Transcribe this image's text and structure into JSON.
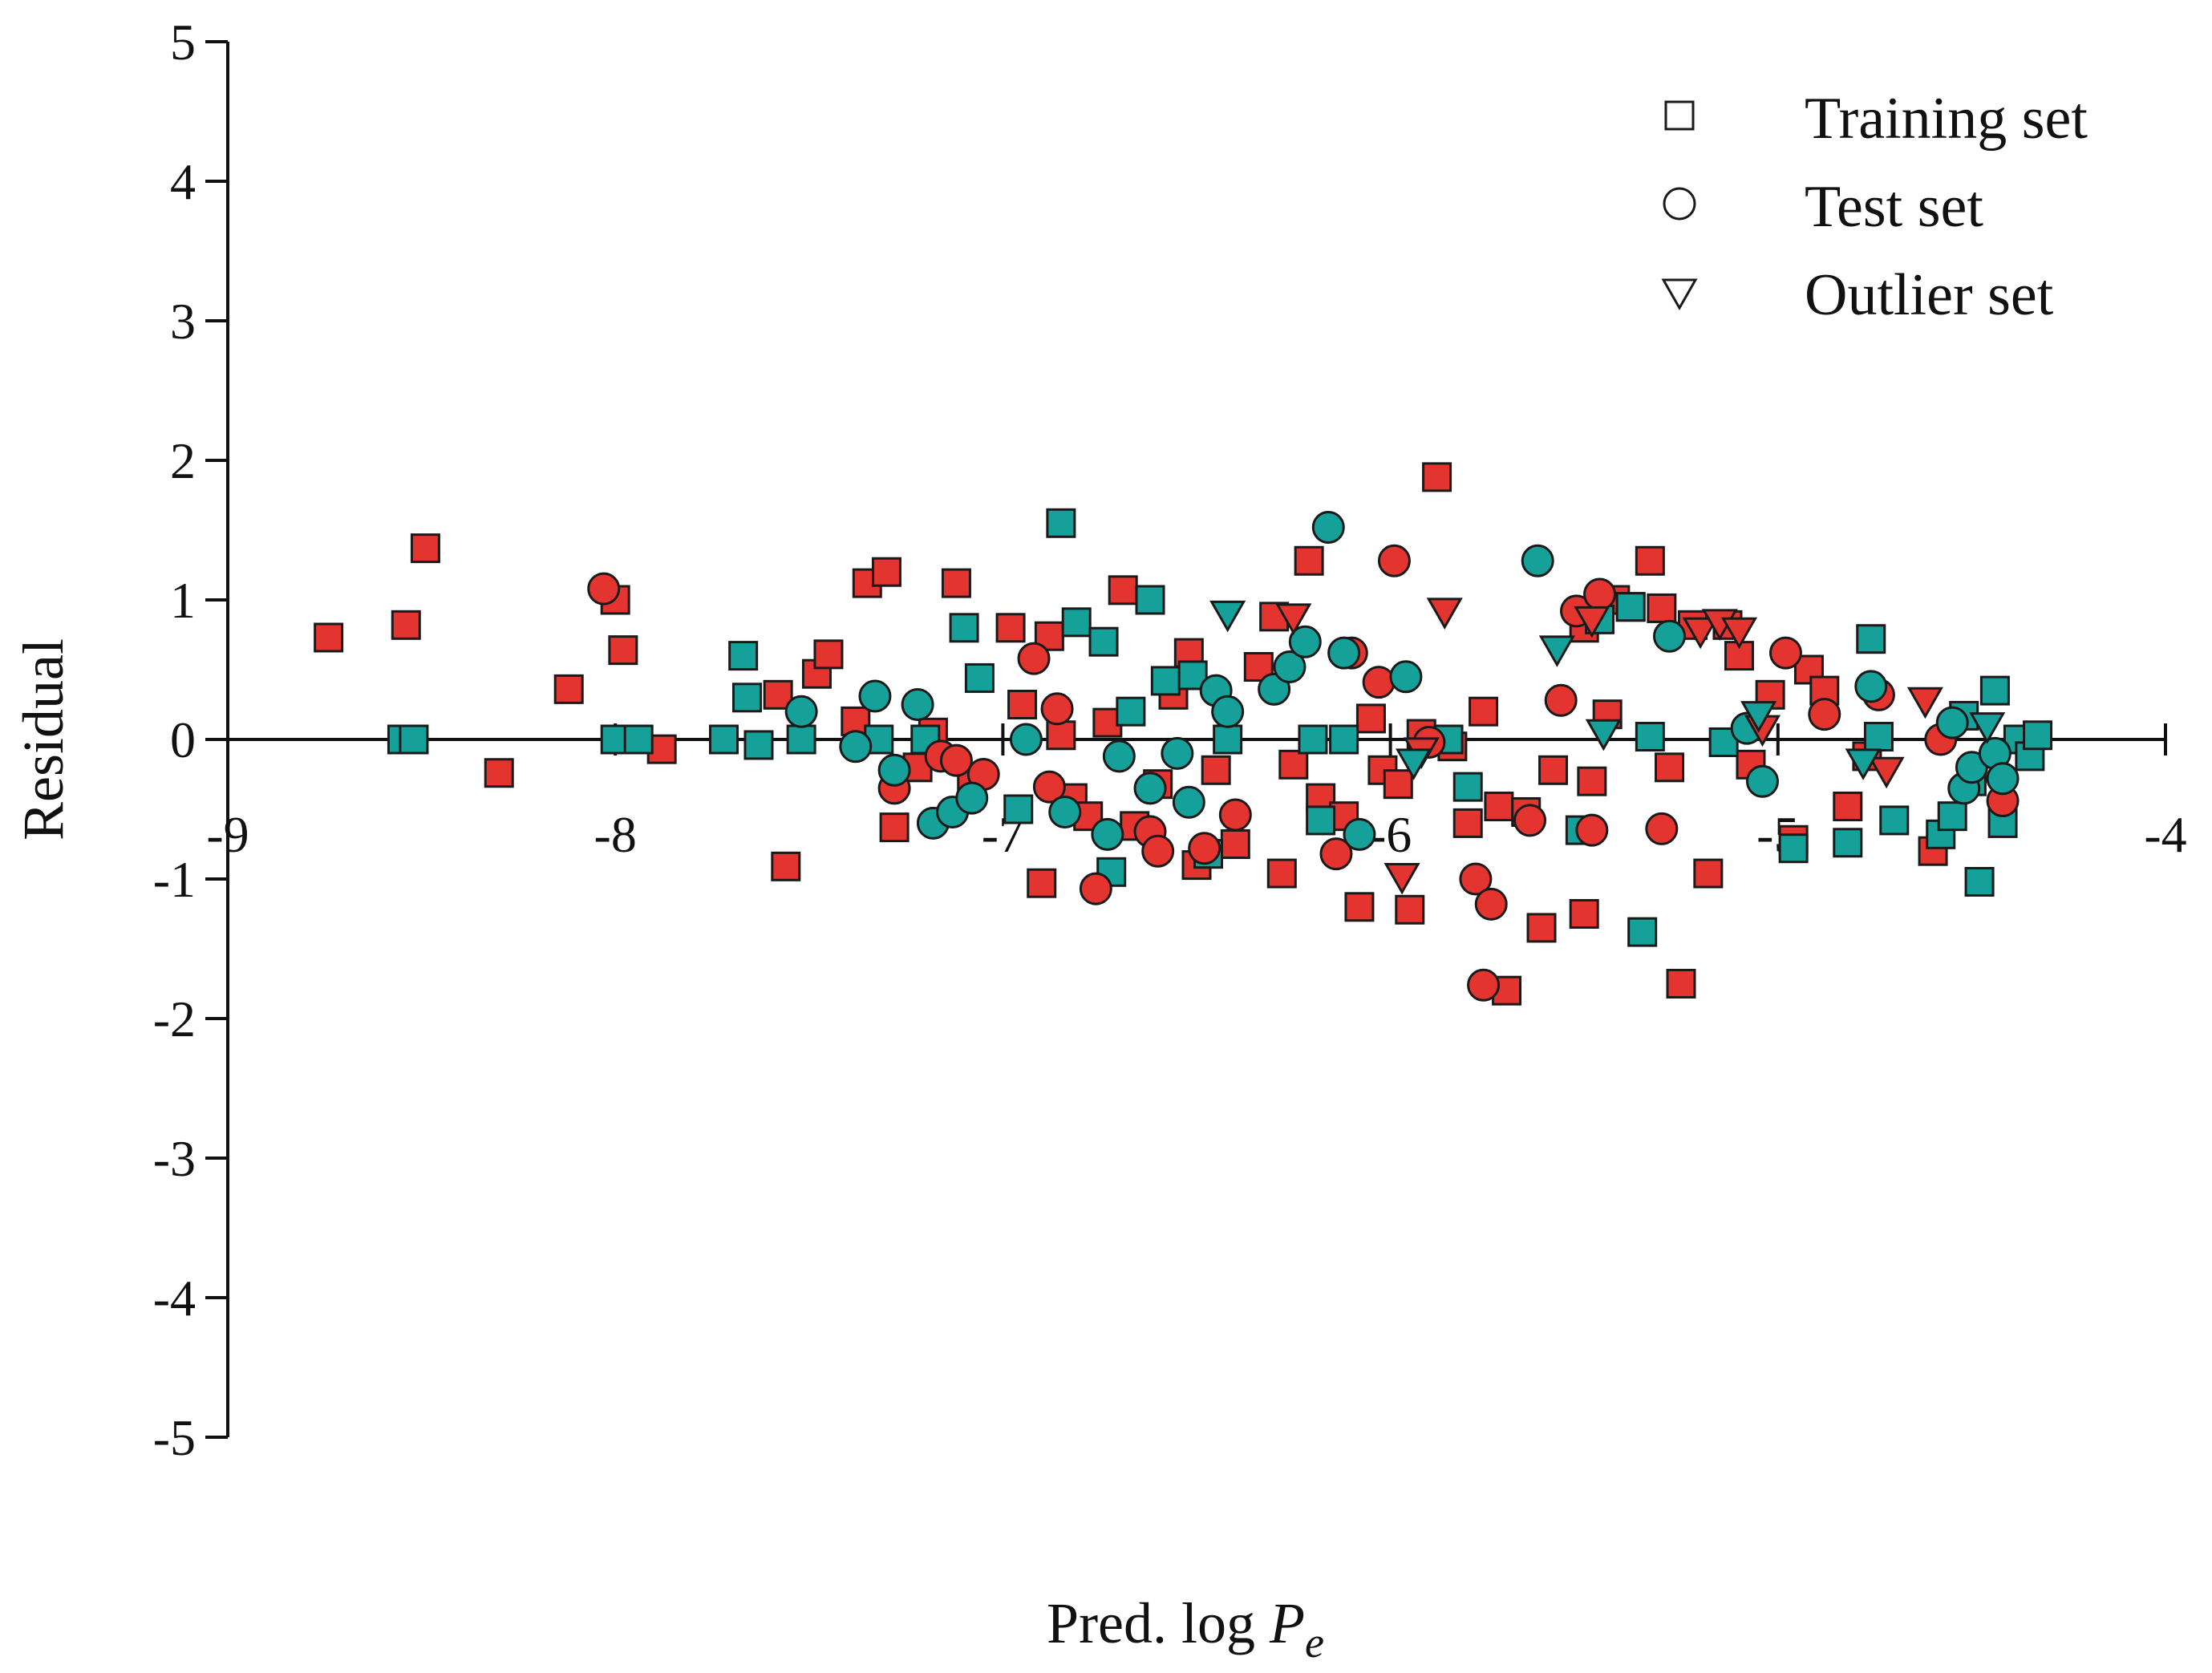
{
  "chart_data": {
    "type": "scatter",
    "xlabel_prefix": "Pred. log ",
    "xlabel_var": "P",
    "xlabel_sub": "e",
    "ylabel": "Residual",
    "xlim": [
      -9,
      -4
    ],
    "ylim": [
      -5,
      5
    ],
    "xticks": [
      "-9",
      "-8",
      "-7",
      "-6",
      "-5",
      "-4"
    ],
    "yticks": [
      "5",
      "4",
      "3",
      "2",
      "1",
      "0",
      "-1",
      "-2",
      "-3",
      "-4",
      "-5"
    ],
    "legend": {
      "position": "top-right",
      "entries": [
        {
          "label": "Training set",
          "marker": "square"
        },
        {
          "label": "Test set",
          "marker": "circle"
        },
        {
          "label": "Outlier set",
          "marker": "triangle-down"
        }
      ]
    },
    "colors": {
      "red": "#e3342f",
      "teal": "#15a09a",
      "edge": "#1a1a1a"
    },
    "series": [
      {
        "marker": "square",
        "color": "red",
        "points": [
          [
            -8.74,
            0.73
          ],
          [
            -8.54,
            0.82
          ],
          [
            -8.49,
            1.37
          ],
          [
            -8.3,
            -0.24
          ],
          [
            -8.12,
            0.36
          ],
          [
            -8.0,
            1.0
          ],
          [
            -7.98,
            0.64
          ],
          [
            -7.88,
            -0.07
          ],
          [
            -7.58,
            0.32
          ],
          [
            -7.56,
            -0.91
          ],
          [
            -7.48,
            0.47
          ],
          [
            -7.45,
            0.61
          ],
          [
            -7.38,
            0.13
          ],
          [
            -7.35,
            1.12
          ],
          [
            -7.3,
            1.2
          ],
          [
            -7.28,
            -0.63
          ],
          [
            -7.22,
            -0.2
          ],
          [
            -7.18,
            0.05
          ],
          [
            -7.12,
            1.12
          ],
          [
            -7.08,
            -0.3
          ],
          [
            -6.98,
            0.8
          ],
          [
            -6.95,
            0.25
          ],
          [
            -6.9,
            -1.03
          ],
          [
            -6.88,
            0.74
          ],
          [
            -6.85,
            0.03
          ],
          [
            -6.82,
            -0.42
          ],
          [
            -6.78,
            -0.55
          ],
          [
            -6.73,
            0.12
          ],
          [
            -6.69,
            1.07
          ],
          [
            -6.66,
            -0.62
          ],
          [
            -6.6,
            -0.32
          ],
          [
            -6.56,
            0.32
          ],
          [
            -6.52,
            0.62
          ],
          [
            -6.5,
            -0.9
          ],
          [
            -6.45,
            -0.22
          ],
          [
            -6.4,
            -0.75
          ],
          [
            -6.34,
            0.52
          ],
          [
            -6.3,
            0.88
          ],
          [
            -6.28,
            -0.96
          ],
          [
            -6.25,
            -0.18
          ],
          [
            -6.21,
            1.28
          ],
          [
            -6.18,
            -0.42
          ],
          [
            -6.12,
            -0.55
          ],
          [
            -6.08,
            -1.2
          ],
          [
            -6.05,
            0.15
          ],
          [
            -6.02,
            -0.22
          ],
          [
            -5.98,
            -0.32
          ],
          [
            -5.95,
            -1.22
          ],
          [
            -5.92,
            0.04
          ],
          [
            -5.88,
            1.88
          ],
          [
            -5.84,
            -0.05
          ],
          [
            -5.8,
            -0.6
          ],
          [
            -5.76,
            0.2
          ],
          [
            -5.72,
            -0.48
          ],
          [
            -5.7,
            -1.8
          ],
          [
            -5.65,
            -0.52
          ],
          [
            -5.61,
            -1.35
          ],
          [
            -5.58,
            -0.22
          ],
          [
            -5.5,
            0.8
          ],
          [
            -5.5,
            -1.25
          ],
          [
            -5.48,
            -0.3
          ],
          [
            -5.44,
            0.18
          ],
          [
            -5.42,
            1.0
          ],
          [
            -5.38,
            0.95
          ],
          [
            -5.33,
            1.28
          ],
          [
            -5.3,
            0.94
          ],
          [
            -5.28,
            -0.2
          ],
          [
            -5.25,
            -1.75
          ],
          [
            -5.22,
            0.82
          ],
          [
            -5.18,
            -0.96
          ],
          [
            -5.13,
            0.82
          ],
          [
            -5.1,
            0.6
          ],
          [
            -5.07,
            -0.18
          ],
          [
            -5.02,
            0.32
          ],
          [
            -4.96,
            -0.72
          ],
          [
            -4.92,
            0.5
          ],
          [
            -4.88,
            0.35
          ],
          [
            -4.82,
            -0.48
          ],
          [
            -4.77,
            -0.12
          ],
          [
            -4.6,
            -0.8
          ]
        ]
      },
      {
        "marker": "square",
        "color": "teal",
        "points": [
          [
            -8.55,
            0.0
          ],
          [
            -8.52,
            0.0
          ],
          [
            -8.0,
            0.0
          ],
          [
            -7.94,
            0.0
          ],
          [
            -7.72,
            0.0
          ],
          [
            -7.67,
            0.6
          ],
          [
            -7.66,
            0.3
          ],
          [
            -7.63,
            -0.04
          ],
          [
            -7.52,
            0.0
          ],
          [
            -7.32,
            0.0
          ],
          [
            -7.2,
            0.0
          ],
          [
            -7.1,
            0.8
          ],
          [
            -7.06,
            0.44
          ],
          [
            -6.96,
            -0.5
          ],
          [
            -6.85,
            1.55
          ],
          [
            -6.81,
            0.84
          ],
          [
            -6.74,
            0.7
          ],
          [
            -6.72,
            -0.95
          ],
          [
            -6.67,
            0.2
          ],
          [
            -6.62,
            1.0
          ],
          [
            -6.58,
            0.42
          ],
          [
            -6.51,
            0.46
          ],
          [
            -6.47,
            -0.82
          ],
          [
            -6.42,
            0.0
          ],
          [
            -6.2,
            0.0
          ],
          [
            -6.18,
            -0.58
          ],
          [
            -6.12,
            0.0
          ],
          [
            -5.85,
            0.0
          ],
          [
            -5.8,
            -0.34
          ],
          [
            -5.51,
            -0.65
          ],
          [
            -5.46,
            0.86
          ],
          [
            -5.38,
            0.95
          ],
          [
            -5.35,
            -1.38
          ],
          [
            -5.33,
            0.02
          ],
          [
            -5.14,
            -0.02
          ],
          [
            -4.96,
            -0.78
          ],
          [
            -4.82,
            -0.74
          ],
          [
            -4.76,
            0.72
          ],
          [
            -4.74,
            0.02
          ],
          [
            -4.7,
            -0.58
          ],
          [
            -4.58,
            -0.68
          ],
          [
            -4.55,
            -0.55
          ],
          [
            -4.52,
            0.17
          ],
          [
            -4.5,
            -0.3
          ],
          [
            -4.48,
            -1.02
          ],
          [
            -4.44,
            0.35
          ],
          [
            -4.42,
            -0.6
          ],
          [
            -4.38,
            0.0
          ],
          [
            -4.35,
            -0.12
          ],
          [
            -4.33,
            0.03
          ]
        ]
      },
      {
        "marker": "circle",
        "color": "red",
        "points": [
          [
            -8.03,
            1.08
          ],
          [
            -7.28,
            -0.35
          ],
          [
            -7.16,
            -0.12
          ],
          [
            -7.12,
            -0.15
          ],
          [
            -7.05,
            -0.25
          ],
          [
            -6.92,
            0.58
          ],
          [
            -6.88,
            -0.34
          ],
          [
            -6.86,
            0.22
          ],
          [
            -6.76,
            -1.07
          ],
          [
            -6.62,
            -0.66
          ],
          [
            -6.6,
            -0.8
          ],
          [
            -6.48,
            -0.78
          ],
          [
            -6.4,
            -0.54
          ],
          [
            -6.14,
            -0.82
          ],
          [
            -6.1,
            0.62
          ],
          [
            -6.03,
            0.41
          ],
          [
            -5.99,
            1.28
          ],
          [
            -5.9,
            -0.02
          ],
          [
            -5.78,
            -1.0
          ],
          [
            -5.76,
            -1.76
          ],
          [
            -5.74,
            -1.18
          ],
          [
            -5.64,
            -0.58
          ],
          [
            -5.56,
            0.28
          ],
          [
            -5.52,
            0.92
          ],
          [
            -5.48,
            -0.65
          ],
          [
            -5.46,
            1.04
          ],
          [
            -5.3,
            -0.64
          ],
          [
            -4.98,
            0.62
          ],
          [
            -4.88,
            0.18
          ],
          [
            -4.74,
            0.32
          ],
          [
            -4.58,
            0.0
          ],
          [
            -4.42,
            -0.44
          ]
        ]
      },
      {
        "marker": "circle",
        "color": "teal",
        "points": [
          [
            -7.52,
            0.2
          ],
          [
            -7.38,
            -0.05
          ],
          [
            -7.33,
            0.31
          ],
          [
            -7.28,
            -0.22
          ],
          [
            -7.22,
            0.25
          ],
          [
            -7.18,
            -0.6
          ],
          [
            -7.13,
            -0.52
          ],
          [
            -7.08,
            -0.42
          ],
          [
            -6.94,
            0.0
          ],
          [
            -6.84,
            -0.52
          ],
          [
            -6.73,
            -0.68
          ],
          [
            -6.7,
            -0.12
          ],
          [
            -6.62,
            -0.35
          ],
          [
            -6.55,
            -0.1
          ],
          [
            -6.52,
            -0.45
          ],
          [
            -6.45,
            0.35
          ],
          [
            -6.42,
            0.2
          ],
          [
            -6.3,
            0.36
          ],
          [
            -6.26,
            0.52
          ],
          [
            -6.22,
            0.7
          ],
          [
            -6.16,
            1.52
          ],
          [
            -6.12,
            0.62
          ],
          [
            -6.08,
            -0.68
          ],
          [
            -5.96,
            0.45
          ],
          [
            -5.62,
            1.28
          ],
          [
            -5.28,
            0.74
          ],
          [
            -5.08,
            0.08
          ],
          [
            -5.04,
            -0.3
          ],
          [
            -4.76,
            0.38
          ],
          [
            -4.55,
            0.12
          ],
          [
            -4.52,
            -0.35
          ],
          [
            -4.5,
            -0.2
          ],
          [
            -4.44,
            -0.1
          ],
          [
            -4.42,
            -0.28
          ]
        ]
      },
      {
        "marker": "triangle-down",
        "color": "red",
        "points": [
          [
            -6.25,
            0.88
          ],
          [
            -5.97,
            -0.98
          ],
          [
            -5.92,
            -0.08
          ],
          [
            -5.86,
            0.92
          ],
          [
            -5.48,
            0.86
          ],
          [
            -5.2,
            0.78
          ],
          [
            -5.15,
            0.84
          ],
          [
            -5.1,
            0.78
          ],
          [
            -5.04,
            0.08
          ],
          [
            -4.72,
            -0.22
          ],
          [
            -4.62,
            0.28
          ]
        ]
      },
      {
        "marker": "triangle-down",
        "color": "teal",
        "points": [
          [
            -6.42,
            0.9
          ],
          [
            -5.94,
            -0.16
          ],
          [
            -5.57,
            0.65
          ],
          [
            -5.45,
            0.05
          ],
          [
            -5.05,
            0.18
          ],
          [
            -4.78,
            -0.16
          ],
          [
            -4.46,
            0.1
          ]
        ]
      }
    ]
  }
}
